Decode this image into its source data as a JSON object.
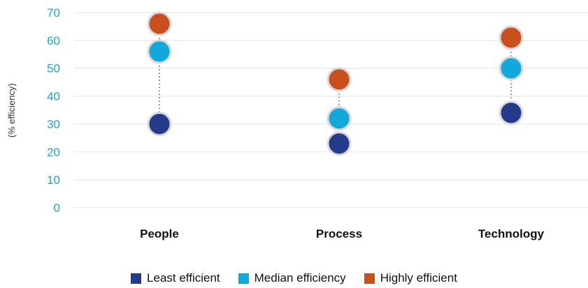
{
  "chart_data": {
    "type": "dot",
    "ylabel": "(% efficiency)",
    "ylim": [
      0,
      70
    ],
    "yticks": [
      "0",
      "10",
      "20",
      "30",
      "40",
      "50",
      "60",
      "70"
    ],
    "categories": [
      "People",
      "Process",
      "Technology"
    ],
    "series": [
      {
        "name": "Least efficient",
        "color": "#243b8c",
        "values": [
          30,
          23,
          34
        ]
      },
      {
        "name": "Median efficiency",
        "color": "#12a8dc",
        "values": [
          56,
          32,
          50
        ]
      },
      {
        "name": "Highly efficient",
        "color": "#c9501c",
        "values": [
          66,
          46,
          61
        ]
      }
    ],
    "grid": true,
    "legend_position": "bottom-center"
  }
}
